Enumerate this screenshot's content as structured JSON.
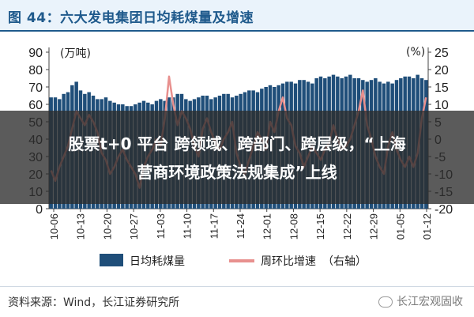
{
  "header": {
    "title": "图 44：六大发电集团日均耗煤量及增速"
  },
  "overlay": {
    "line1": "股票t+0 平台 跨领域、跨部门、跨层级，“上海",
    "line2": "营商环境政策法规集成”上线"
  },
  "footer": {
    "source": "资料来源：Wind，长江证券研究所",
    "brand": "长江宏观固收"
  },
  "chart_data": {
    "type": "bar",
    "title": "",
    "left_axis": {
      "unit": "(万吨)",
      "ylim": [
        0,
        90
      ],
      "ticks": [
        0,
        10,
        20,
        30,
        40,
        50,
        60,
        70,
        80,
        90
      ]
    },
    "right_axis": {
      "unit": "(%)",
      "ylim": [
        -20,
        25
      ],
      "ticks": [
        -20,
        -15,
        -10,
        -5,
        0,
        5,
        10,
        15,
        20,
        25
      ]
    },
    "x_tick_labels": [
      "10-06",
      "10-13",
      "10-20",
      "10-27",
      "11-03",
      "11-10",
      "11-17",
      "11-24",
      "12-01",
      "12-08",
      "12-15",
      "12-22",
      "12-29",
      "01-05",
      "01-12"
    ],
    "series": [
      {
        "name": "日均耗煤量",
        "type": "bar",
        "axis": "left",
        "color": "#1f4e79",
        "values": [
          64,
          64,
          63,
          66,
          67,
          71,
          73,
          68,
          66,
          67,
          65,
          63,
          63,
          64,
          62,
          61,
          60,
          60,
          59,
          59,
          60,
          61,
          62,
          61,
          60,
          62,
          63,
          62,
          64,
          64,
          66,
          66,
          63,
          62,
          63,
          64,
          65,
          65,
          63,
          64,
          65,
          66,
          66,
          64,
          65,
          66,
          67,
          68,
          68,
          67,
          69,
          70,
          71,
          70,
          71,
          72,
          73,
          73,
          72,
          74,
          74,
          73,
          72,
          75,
          76,
          75,
          76,
          77,
          76,
          75,
          76,
          77,
          75,
          75,
          74,
          73,
          74,
          75,
          73,
          72,
          73,
          72,
          74,
          75,
          76,
          76,
          75,
          77,
          75,
          74
        ]
      },
      {
        "name": "周环比增速",
        "axis_label": "（右轴）",
        "type": "line",
        "axis": "right",
        "color": "#e8908e",
        "values": [
          -9,
          -12,
          -8,
          -5,
          -2,
          3,
          8,
          6,
          4,
          7,
          5,
          2,
          -4,
          -6,
          -10,
          -8,
          -5,
          -3,
          -6,
          -8,
          -10,
          -14,
          -8,
          -5,
          -3,
          0,
          -2,
          6,
          18,
          10,
          4,
          8,
          6,
          3,
          -2,
          -5,
          3,
          6,
          2,
          -1,
          -3,
          0,
          2,
          5,
          -4,
          -8,
          -10,
          -6,
          -2,
          2,
          0,
          -3,
          5,
          2,
          8,
          12,
          6,
          4,
          -2,
          -4,
          -8,
          -5,
          -2,
          -4,
          -6,
          -3,
          -1,
          4,
          0,
          -3,
          -2,
          0,
          4,
          8,
          14,
          4,
          0,
          -5,
          -8,
          -10,
          -2,
          2,
          -3,
          -6,
          -8,
          -5,
          -8,
          -4,
          6,
          12
        ]
      }
    ],
    "legend": {
      "placement": "bottom"
    }
  }
}
